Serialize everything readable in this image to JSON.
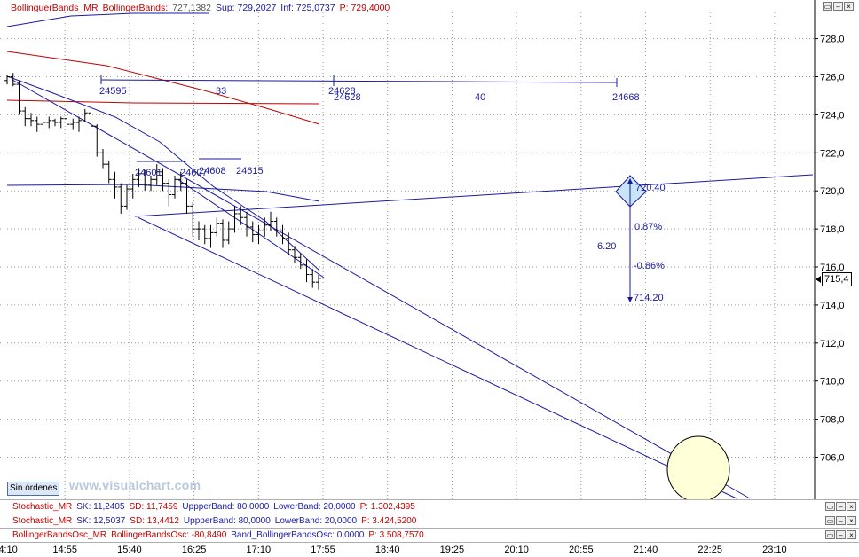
{
  "header": {
    "indicator": "BollinguerBands_MR",
    "name": "BollingerBands:",
    "value": "727,1382",
    "sup": "Sup: 729,2027",
    "inf": "Inf: 725,0737",
    "p": "P: 729,4000"
  },
  "sin_ordenes": "Sin órdenes",
  "watermark": "www.visualchart.com",
  "last_price": "715,4",
  "subpanels": [
    {
      "name": "Stochastic_MR",
      "sk": "SK: 11,2405",
      "sd": "SD: 11,7459",
      "upper": "UppperBand: 80,0000",
      "lower": "LowerBand: 20,0000",
      "p": "P: 1.302,4395"
    },
    {
      "name": "Stochastic_MR",
      "sk": "SK: 12,5037",
      "sd": "SD: 13,4412",
      "upper": "UppperBand: 80,0000",
      "lower": "LowerBand: 20,0000",
      "p": "P: 3.424,5200"
    },
    {
      "name": "BollingerBandsOsc_MR",
      "sk": "BollingerBandsOsc: -80,8490",
      "sd": "Band_BollingerBandsOsc: 0,0000",
      "upper": "",
      "lower": "",
      "p": "P: 3.508,7570"
    }
  ],
  "window_buttons": {
    "restore": "▭",
    "minimize": "–",
    "close": "×"
  },
  "x_labels": [
    "14:10",
    "14:55",
    "15:40",
    "16:25",
    "17:10",
    "17:55",
    "18:40",
    "19:25",
    "20:10",
    "20:55",
    "21:40",
    "22:25",
    "23:10"
  ],
  "chart_data": {
    "type": "candlestick",
    "y_axis": {
      "min": 704,
      "max": 729.5,
      "ticks": [
        706,
        708,
        710,
        712,
        714,
        716,
        718,
        720,
        722,
        724,
        726,
        728
      ],
      "tick_labels": [
        "706,0",
        "708,0",
        "710,0",
        "712,0",
        "714,0",
        "716,0",
        "718,0",
        "720,0",
        "722,0",
        "724,0",
        "726,0",
        "728,0"
      ]
    },
    "x_axis": {
      "labels": [
        "14:10",
        "14:55",
        "15:40",
        "16:25",
        "17:10",
        "17:55",
        "18:40",
        "19:25",
        "20:10",
        "20:55",
        "21:40",
        "22:25",
        "23:10"
      ]
    },
    "bars": [
      {
        "t": 0,
        "o": 725.8,
        "h": 726.1,
        "l": 725.6,
        "c": 726.0
      },
      {
        "t": 1,
        "o": 726.0,
        "h": 726.2,
        "l": 725.5,
        "c": 725.6
      },
      {
        "t": 2,
        "o": 725.6,
        "h": 725.8,
        "l": 724.0,
        "c": 724.2
      },
      {
        "t": 3,
        "o": 724.2,
        "h": 724.4,
        "l": 723.4,
        "c": 723.8
      },
      {
        "t": 4,
        "o": 723.8,
        "h": 724.1,
        "l": 723.4,
        "c": 723.7
      },
      {
        "t": 5,
        "o": 723.7,
        "h": 723.9,
        "l": 723.1,
        "c": 723.5
      },
      {
        "t": 6,
        "o": 723.5,
        "h": 723.8,
        "l": 723.1,
        "c": 723.6
      },
      {
        "t": 7,
        "o": 723.6,
        "h": 723.9,
        "l": 723.3,
        "c": 723.7
      },
      {
        "t": 8,
        "o": 723.7,
        "h": 723.8,
        "l": 723.4,
        "c": 723.6
      },
      {
        "t": 9,
        "o": 723.6,
        "h": 723.9,
        "l": 723.3,
        "c": 723.8
      },
      {
        "t": 10,
        "o": 723.8,
        "h": 724.0,
        "l": 723.4,
        "c": 723.5
      },
      {
        "t": 11,
        "o": 723.5,
        "h": 723.8,
        "l": 723.2,
        "c": 723.6
      },
      {
        "t": 12,
        "o": 723.6,
        "h": 723.9,
        "l": 723.1,
        "c": 723.7
      },
      {
        "t": 13,
        "o": 723.7,
        "h": 724.3,
        "l": 723.6,
        "c": 724.1
      },
      {
        "t": 14,
        "o": 724.1,
        "h": 724.2,
        "l": 723.2,
        "c": 723.4
      },
      {
        "t": 15,
        "o": 723.4,
        "h": 723.5,
        "l": 721.8,
        "c": 722.0
      },
      {
        "t": 16,
        "o": 722.0,
        "h": 722.2,
        "l": 721.2,
        "c": 721.4
      },
      {
        "t": 17,
        "o": 721.4,
        "h": 721.6,
        "l": 720.4,
        "c": 720.6
      },
      {
        "t": 18,
        "o": 720.6,
        "h": 721.0,
        "l": 719.6,
        "c": 720.2
      },
      {
        "t": 19,
        "o": 720.2,
        "h": 720.4,
        "l": 718.8,
        "c": 719.2
      },
      {
        "t": 20,
        "o": 719.2,
        "h": 720.3,
        "l": 719.0,
        "c": 720.1
      },
      {
        "t": 21,
        "o": 720.1,
        "h": 720.9,
        "l": 719.6,
        "c": 720.6
      },
      {
        "t": 22,
        "o": 720.6,
        "h": 721.2,
        "l": 720.2,
        "c": 720.9
      },
      {
        "t": 23,
        "o": 720.9,
        "h": 721.1,
        "l": 720.0,
        "c": 720.3
      },
      {
        "t": 24,
        "o": 720.3,
        "h": 720.8,
        "l": 720.0,
        "c": 720.6
      },
      {
        "t": 25,
        "o": 720.6,
        "h": 721.4,
        "l": 720.3,
        "c": 721.0
      },
      {
        "t": 26,
        "o": 721.0,
        "h": 721.2,
        "l": 720.0,
        "c": 720.4
      },
      {
        "t": 27,
        "o": 720.4,
        "h": 720.6,
        "l": 719.2,
        "c": 719.8
      },
      {
        "t": 28,
        "o": 719.8,
        "h": 720.8,
        "l": 719.6,
        "c": 720.6
      },
      {
        "t": 29,
        "o": 720.6,
        "h": 721.0,
        "l": 720.0,
        "c": 720.4
      },
      {
        "t": 30,
        "o": 720.4,
        "h": 720.6,
        "l": 718.8,
        "c": 719.2
      },
      {
        "t": 31,
        "o": 719.2,
        "h": 719.4,
        "l": 717.6,
        "c": 718.0
      },
      {
        "t": 32,
        "o": 718.0,
        "h": 718.4,
        "l": 717.4,
        "c": 718.0
      },
      {
        "t": 33,
        "o": 718.0,
        "h": 718.2,
        "l": 717.2,
        "c": 717.5
      },
      {
        "t": 34,
        "o": 717.5,
        "h": 718.2,
        "l": 717.0,
        "c": 717.8
      },
      {
        "t": 35,
        "o": 717.8,
        "h": 718.6,
        "l": 717.6,
        "c": 718.3
      },
      {
        "t": 36,
        "o": 718.3,
        "h": 718.5,
        "l": 717.0,
        "c": 717.4
      },
      {
        "t": 37,
        "o": 717.4,
        "h": 718.4,
        "l": 717.2,
        "c": 718.0
      },
      {
        "t": 38,
        "o": 718.0,
        "h": 719.2,
        "l": 717.8,
        "c": 718.8
      },
      {
        "t": 39,
        "o": 718.8,
        "h": 719.2,
        "l": 718.2,
        "c": 718.6
      },
      {
        "t": 40,
        "o": 718.6,
        "h": 718.9,
        "l": 717.6,
        "c": 718.1
      },
      {
        "t": 41,
        "o": 718.1,
        "h": 718.4,
        "l": 717.3,
        "c": 717.7
      },
      {
        "t": 42,
        "o": 717.7,
        "h": 718.2,
        "l": 717.2,
        "c": 717.9
      },
      {
        "t": 43,
        "o": 717.9,
        "h": 718.6,
        "l": 717.6,
        "c": 718.2
      },
      {
        "t": 44,
        "o": 718.2,
        "h": 718.9,
        "l": 717.9,
        "c": 718.4
      },
      {
        "t": 45,
        "o": 718.4,
        "h": 718.6,
        "l": 717.6,
        "c": 717.9
      },
      {
        "t": 46,
        "o": 717.9,
        "h": 718.2,
        "l": 717.2,
        "c": 717.5
      },
      {
        "t": 47,
        "o": 717.5,
        "h": 717.8,
        "l": 716.6,
        "c": 716.9
      },
      {
        "t": 48,
        "o": 716.9,
        "h": 717.1,
        "l": 716.2,
        "c": 716.5
      },
      {
        "t": 49,
        "o": 716.5,
        "h": 716.7,
        "l": 715.9,
        "c": 716.1
      },
      {
        "t": 50,
        "o": 716.1,
        "h": 716.4,
        "l": 715.2,
        "c": 715.6
      },
      {
        "t": 51,
        "o": 715.6,
        "h": 715.9,
        "l": 714.9,
        "c": 715.2
      },
      {
        "t": 52,
        "o": 715.2,
        "h": 715.6,
        "l": 714.8,
        "c": 715.4
      }
    ],
    "annotations": {
      "counts": [
        "24595",
        "33",
        "24628",
        "24628",
        "40",
        "24668",
        "24601",
        "24607",
        "24608",
        "24615"
      ],
      "measure": {
        "top": "720.40",
        "bottom": "714.20",
        "range": "6.20",
        "up_pct": "0.87%",
        "down_pct": "-0.86%"
      }
    },
    "colors": {
      "bars": "#000000",
      "lines": "#1a1aa0",
      "red_line": "#c00000",
      "circle_fill": "#ffffd8",
      "diamond_fill": "#c8e4f6"
    }
  }
}
